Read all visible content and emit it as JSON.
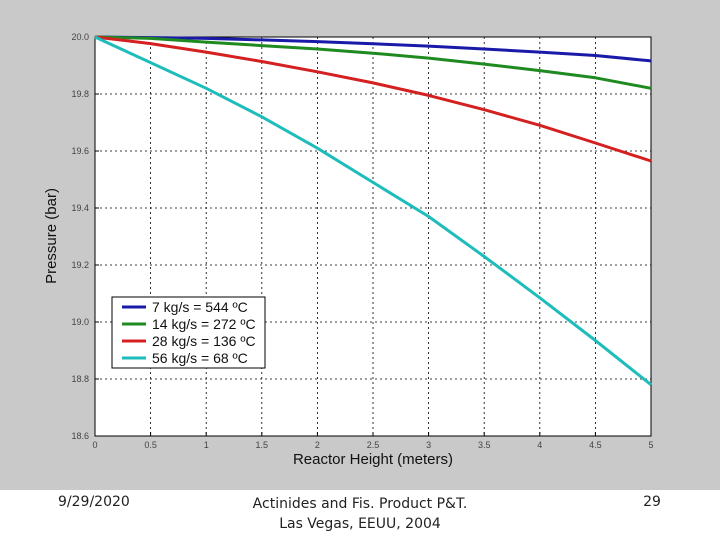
{
  "chart_data": {
    "type": "line",
    "xlabel": "Reactor Height (meters)",
    "ylabel": "Pressure (bar)",
    "xlim": [
      0,
      5
    ],
    "ylim": [
      18.6,
      20.0
    ],
    "xticks": [
      0,
      0.5,
      1,
      1.5,
      2,
      2.5,
      3,
      3.5,
      4,
      4.5,
      5
    ],
    "xtick_labels": [
      "0",
      "0.5",
      "1",
      "1.5",
      "2",
      "2.5",
      "3",
      "3.5",
      "4",
      "4.5",
      "5"
    ],
    "yticks": [
      18.6,
      18.8,
      19.0,
      19.2,
      19.4,
      19.6,
      19.8,
      20.0
    ],
    "ytick_labels": [
      "18.6",
      "18.8",
      "19.0",
      "19.2",
      "19.4",
      "19.6",
      "19.8",
      "20.0"
    ],
    "grid": true,
    "legend_position": "lower-left",
    "series": [
      {
        "name": "7 kg/s = 544 ºC",
        "color": "#1a1aa8",
        "x": [
          0,
          0.5,
          1,
          1.5,
          2,
          2.5,
          3,
          3.5,
          4,
          4.5,
          5
        ],
        "y": [
          20.0,
          19.998,
          19.995,
          19.99,
          19.984,
          19.976,
          19.968,
          19.958,
          19.947,
          19.935,
          19.916
        ]
      },
      {
        "name": "14 kg/s = 272 ºC",
        "color": "#1f8a1f",
        "x": [
          0,
          0.5,
          1,
          1.5,
          2,
          2.5,
          3,
          3.5,
          4,
          4.5,
          5
        ],
        "y": [
          20.0,
          19.995,
          19.982,
          19.97,
          19.958,
          19.943,
          19.926,
          19.905,
          19.882,
          19.857,
          19.82
        ]
      },
      {
        "name": "28 kg/s = 136 ºC",
        "color": "#d42020",
        "x": [
          0,
          0.5,
          1,
          1.5,
          2,
          2.5,
          3,
          3.5,
          4,
          4.5,
          5
        ],
        "y": [
          20.0,
          19.977,
          19.947,
          19.914,
          19.878,
          19.839,
          19.795,
          19.745,
          19.69,
          19.628,
          19.565
        ]
      },
      {
        "name": "56 kg/s = 68 ºC",
        "color": "#1fbcbc",
        "x": [
          0,
          0.5,
          1,
          1.5,
          2,
          2.5,
          3,
          3.5,
          4,
          4.5,
          5
        ],
        "y": [
          20.0,
          19.91,
          19.82,
          19.72,
          19.61,
          19.49,
          19.37,
          19.23,
          19.085,
          18.935,
          18.78
        ]
      }
    ]
  },
  "footer": {
    "date": "9/29/2020",
    "line1": "Actinides and Fis. Product P&T.",
    "line2": "Las Vegas, EEUU, 2004",
    "page": "29"
  }
}
